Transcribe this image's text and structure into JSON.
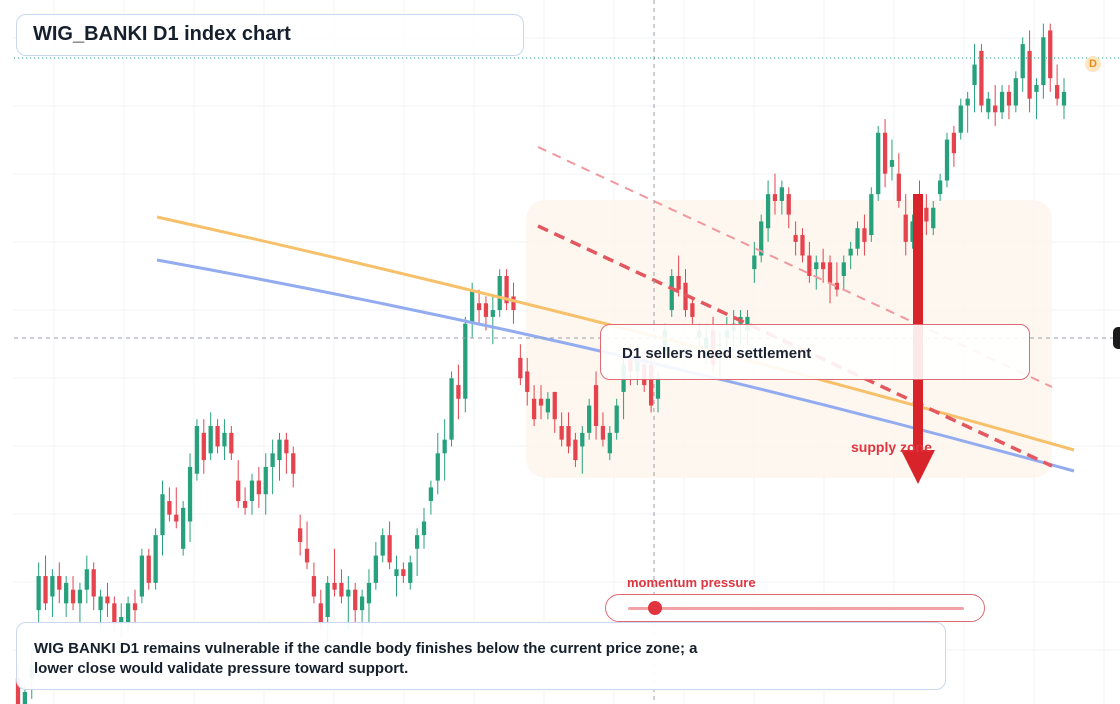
{
  "header": {
    "title": "WIG_BANKI D1 index chart"
  },
  "callout": {
    "text": "D1 sellers need settlement"
  },
  "supply_label": "supply zone",
  "momentum": {
    "label": "momentum pressure",
    "level": 0.08
  },
  "note": {
    "line1": "WIG BANKI D1 remains vulnerable if the candle body finishes below the current price zone; a",
    "line2": "lower close would validate pressure toward support."
  },
  "badges": {
    "interval": "D"
  },
  "colors": {
    "bull": "#26a17c",
    "bear": "#e5434d",
    "ema_fast": "#f7c06a",
    "ema_slow": "#93acf0",
    "channel": "#e3575f",
    "arrow": "#d8232a",
    "zone_fill": "#fdf3ea"
  },
  "chart_data": {
    "type": "candlestick",
    "title": "WIG_BANKI D1 index chart",
    "price_range": [
      0,
      100
    ],
    "current_price": 88,
    "crosshair_price": 52,
    "candles": [
      {
        "o": 2,
        "h": 4,
        "l": -4,
        "c": -2
      },
      {
        "o": -2,
        "h": 1,
        "l": -5,
        "c": 0
      },
      {
        "o": 2,
        "h": 6,
        "l": -1,
        "c": 4
      },
      {
        "o": 12,
        "h": 19,
        "l": 10,
        "c": 17
      },
      {
        "o": 17,
        "h": 20,
        "l": 12,
        "c": 13
      },
      {
        "o": 14,
        "h": 18,
        "l": 11,
        "c": 17
      },
      {
        "o": 17,
        "h": 19,
        "l": 13,
        "c": 15
      },
      {
        "o": 13,
        "h": 17,
        "l": 11,
        "c": 16
      },
      {
        "o": 15,
        "h": 17,
        "l": 12,
        "c": 13
      },
      {
        "o": 13,
        "h": 16,
        "l": 10,
        "c": 15
      },
      {
        "o": 15,
        "h": 20,
        "l": 13,
        "c": 18
      },
      {
        "o": 18,
        "h": 19,
        "l": 12,
        "c": 14
      },
      {
        "o": 12,
        "h": 15,
        "l": 9,
        "c": 14
      },
      {
        "o": 14,
        "h": 16,
        "l": 11,
        "c": 13
      },
      {
        "o": 13,
        "h": 14,
        "l": 9,
        "c": 10
      },
      {
        "o": 10,
        "h": 13,
        "l": 8,
        "c": 11
      },
      {
        "o": 10,
        "h": 14,
        "l": 9,
        "c": 13
      },
      {
        "o": 13,
        "h": 15,
        "l": 10,
        "c": 12
      },
      {
        "o": 14,
        "h": 21,
        "l": 13,
        "c": 20
      },
      {
        "o": 20,
        "h": 21,
        "l": 15,
        "c": 16
      },
      {
        "o": 16,
        "h": 24,
        "l": 15,
        "c": 23
      },
      {
        "o": 23,
        "h": 31,
        "l": 20,
        "c": 29
      },
      {
        "o": 28,
        "h": 30,
        "l": 25,
        "c": 26
      },
      {
        "o": 26,
        "h": 30,
        "l": 24,
        "c": 25
      },
      {
        "o": 21,
        "h": 28,
        "l": 20,
        "c": 27
      },
      {
        "o": 25,
        "h": 35,
        "l": 22,
        "c": 33
      },
      {
        "o": 32,
        "h": 40,
        "l": 31,
        "c": 39
      },
      {
        "o": 38,
        "h": 40,
        "l": 32,
        "c": 34
      },
      {
        "o": 35,
        "h": 41,
        "l": 34,
        "c": 39
      },
      {
        "o": 39,
        "h": 40,
        "l": 35,
        "c": 36
      },
      {
        "o": 36,
        "h": 40,
        "l": 34,
        "c": 38
      },
      {
        "o": 38,
        "h": 39,
        "l": 34,
        "c": 35
      },
      {
        "o": 31,
        "h": 34,
        "l": 27,
        "c": 28
      },
      {
        "o": 28,
        "h": 30,
        "l": 26,
        "c": 27
      },
      {
        "o": 28,
        "h": 32,
        "l": 26,
        "c": 31
      },
      {
        "o": 31,
        "h": 33,
        "l": 27,
        "c": 29
      },
      {
        "o": 29,
        "h": 35,
        "l": 26,
        "c": 33
      },
      {
        "o": 33,
        "h": 37,
        "l": 29,
        "c": 35
      },
      {
        "o": 34,
        "h": 38,
        "l": 31,
        "c": 37
      },
      {
        "o": 37,
        "h": 38,
        "l": 32,
        "c": 35
      },
      {
        "o": 35,
        "h": 36,
        "l": 30,
        "c": 32
      },
      {
        "o": 24,
        "h": 26,
        "l": 20,
        "c": 22
      },
      {
        "o": 21,
        "h": 25,
        "l": 18,
        "c": 19
      },
      {
        "o": 17,
        "h": 19,
        "l": 13,
        "c": 14
      },
      {
        "o": 13,
        "h": 15,
        "l": 9,
        "c": 10
      },
      {
        "o": 11,
        "h": 17,
        "l": 6,
        "c": 16
      },
      {
        "o": 16,
        "h": 21,
        "l": 14,
        "c": 15
      },
      {
        "o": 16,
        "h": 18,
        "l": 13,
        "c": 14
      },
      {
        "o": 14,
        "h": 17,
        "l": 9,
        "c": 15
      },
      {
        "o": 15,
        "h": 16,
        "l": 10,
        "c": 12
      },
      {
        "o": 12,
        "h": 15,
        "l": 8,
        "c": 14
      },
      {
        "o": 13,
        "h": 18,
        "l": 10,
        "c": 16
      },
      {
        "o": 16,
        "h": 22,
        "l": 15,
        "c": 20
      },
      {
        "o": 20,
        "h": 24,
        "l": 19,
        "c": 23
      },
      {
        "o": 23,
        "h": 25,
        "l": 18,
        "c": 19
      },
      {
        "o": 17,
        "h": 20,
        "l": 14,
        "c": 18
      },
      {
        "o": 18,
        "h": 19,
        "l": 16,
        "c": 17
      },
      {
        "o": 16,
        "h": 20,
        "l": 15,
        "c": 19
      },
      {
        "o": 21,
        "h": 24,
        "l": 17,
        "c": 23
      },
      {
        "o": 23,
        "h": 27,
        "l": 21,
        "c": 25
      },
      {
        "o": 28,
        "h": 31,
        "l": 26,
        "c": 30
      },
      {
        "o": 31,
        "h": 38,
        "l": 29,
        "c": 35
      },
      {
        "o": 35,
        "h": 40,
        "l": 31,
        "c": 37
      },
      {
        "o": 37,
        "h": 47,
        "l": 36,
        "c": 46
      },
      {
        "o": 45,
        "h": 48,
        "l": 40,
        "c": 43
      },
      {
        "o": 43,
        "h": 55,
        "l": 41,
        "c": 54
      },
      {
        "o": 54,
        "h": 60,
        "l": 52,
        "c": 59
      },
      {
        "o": 57,
        "h": 59,
        "l": 54,
        "c": 56
      },
      {
        "o": 57,
        "h": 58,
        "l": 53,
        "c": 55
      },
      {
        "o": 55,
        "h": 58,
        "l": 51,
        "c": 56
      },
      {
        "o": 56,
        "h": 62,
        "l": 55,
        "c": 61
      },
      {
        "o": 61,
        "h": 62,
        "l": 56,
        "c": 57
      },
      {
        "o": 58,
        "h": 60,
        "l": 54,
        "c": 56
      },
      {
        "o": 49,
        "h": 51,
        "l": 45,
        "c": 46
      },
      {
        "o": 47,
        "h": 49,
        "l": 42,
        "c": 44
      },
      {
        "o": 43,
        "h": 45,
        "l": 39,
        "c": 40
      },
      {
        "o": 43,
        "h": 45,
        "l": 40,
        "c": 42
      },
      {
        "o": 41,
        "h": 44,
        "l": 40,
        "c": 43
      },
      {
        "o": 44,
        "h": 44,
        "l": 38,
        "c": 40
      },
      {
        "o": 39,
        "h": 41,
        "l": 36,
        "c": 37
      },
      {
        "o": 39,
        "h": 41,
        "l": 35,
        "c": 36
      },
      {
        "o": 37,
        "h": 38,
        "l": 33,
        "c": 34
      },
      {
        "o": 36,
        "h": 39,
        "l": 32,
        "c": 38
      },
      {
        "o": 38,
        "h": 43,
        "l": 37,
        "c": 42
      },
      {
        "o": 45,
        "h": 47,
        "l": 37,
        "c": 39
      },
      {
        "o": 39,
        "h": 41,
        "l": 36,
        "c": 37
      },
      {
        "o": 35,
        "h": 39,
        "l": 34,
        "c": 38
      },
      {
        "o": 38,
        "h": 43,
        "l": 37,
        "c": 42
      },
      {
        "o": 44,
        "h": 50,
        "l": 40,
        "c": 48
      },
      {
        "o": 49,
        "h": 51,
        "l": 45,
        "c": 47
      },
      {
        "o": 47,
        "h": 51,
        "l": 45,
        "c": 49
      },
      {
        "o": 48,
        "h": 50,
        "l": 44,
        "c": 45
      },
      {
        "o": 48,
        "h": 50,
        "l": 41,
        "c": 42
      },
      {
        "o": 43,
        "h": 47,
        "l": 41,
        "c": 46
      },
      {
        "o": 50,
        "h": 54,
        "l": 49,
        "c": 53
      },
      {
        "o": 56,
        "h": 62,
        "l": 55,
        "c": 61
      },
      {
        "o": 61,
        "h": 64,
        "l": 58,
        "c": 59
      },
      {
        "o": 60,
        "h": 62,
        "l": 55,
        "c": 56
      },
      {
        "o": 57,
        "h": 58,
        "l": 54,
        "c": 55
      },
      {
        "o": 52,
        "h": 54,
        "l": 49,
        "c": 53
      },
      {
        "o": 50,
        "h": 54,
        "l": 48,
        "c": 52
      },
      {
        "o": 53,
        "h": 55,
        "l": 47,
        "c": 48
      },
      {
        "o": 51,
        "h": 53,
        "l": 46,
        "c": 51
      },
      {
        "o": 52,
        "h": 55,
        "l": 50,
        "c": 53
      },
      {
        "o": 53,
        "h": 56,
        "l": 50,
        "c": 54
      },
      {
        "o": 54,
        "h": 56,
        "l": 51,
        "c": 55
      },
      {
        "o": 53,
        "h": 56,
        "l": 51,
        "c": 55
      },
      {
        "o": 62,
        "h": 66,
        "l": 60,
        "c": 64
      },
      {
        "o": 64,
        "h": 70,
        "l": 63,
        "c": 69
      },
      {
        "o": 68,
        "h": 75,
        "l": 66,
        "c": 73
      },
      {
        "o": 73,
        "h": 76,
        "l": 70,
        "c": 72
      },
      {
        "o": 72,
        "h": 75,
        "l": 70,
        "c": 74
      },
      {
        "o": 73,
        "h": 74,
        "l": 68,
        "c": 70
      },
      {
        "o": 67,
        "h": 69,
        "l": 64,
        "c": 66
      },
      {
        "o": 67,
        "h": 68,
        "l": 63,
        "c": 64
      },
      {
        "o": 64,
        "h": 66,
        "l": 60,
        "c": 61
      },
      {
        "o": 62,
        "h": 64,
        "l": 59,
        "c": 63
      },
      {
        "o": 63,
        "h": 65,
        "l": 60,
        "c": 62
      },
      {
        "o": 63,
        "h": 64,
        "l": 57,
        "c": 60
      },
      {
        "o": 60,
        "h": 63,
        "l": 58,
        "c": 59
      },
      {
        "o": 61,
        "h": 64,
        "l": 59,
        "c": 63
      },
      {
        "o": 64,
        "h": 66,
        "l": 62,
        "c": 65
      },
      {
        "o": 65,
        "h": 69,
        "l": 64,
        "c": 68
      },
      {
        "o": 68,
        "h": 70,
        "l": 64,
        "c": 66
      },
      {
        "o": 67,
        "h": 74,
        "l": 66,
        "c": 73
      },
      {
        "o": 73,
        "h": 83,
        "l": 72,
        "c": 82
      },
      {
        "o": 82,
        "h": 84,
        "l": 74,
        "c": 76
      },
      {
        "o": 77,
        "h": 81,
        "l": 75,
        "c": 78
      },
      {
        "o": 76,
        "h": 79,
        "l": 71,
        "c": 72
      },
      {
        "o": 70,
        "h": 73,
        "l": 64,
        "c": 66
      },
      {
        "o": 66,
        "h": 70,
        "l": 65,
        "c": 69
      },
      {
        "o": 72,
        "h": 75,
        "l": 69,
        "c": 71
      },
      {
        "o": 71,
        "h": 73,
        "l": 67,
        "c": 69
      },
      {
        "o": 68,
        "h": 72,
        "l": 67,
        "c": 71
      },
      {
        "o": 73,
        "h": 76,
        "l": 72,
        "c": 75
      },
      {
        "o": 75,
        "h": 82,
        "l": 74,
        "c": 81
      },
      {
        "o": 82,
        "h": 83,
        "l": 77,
        "c": 79
      },
      {
        "o": 82,
        "h": 87,
        "l": 81,
        "c": 86
      },
      {
        "o": 86,
        "h": 88,
        "l": 82,
        "c": 87
      },
      {
        "o": 89,
        "h": 95,
        "l": 85,
        "c": 92
      },
      {
        "o": 94,
        "h": 95,
        "l": 85,
        "c": 86
      },
      {
        "o": 85,
        "h": 88,
        "l": 84,
        "c": 87
      },
      {
        "o": 86,
        "h": 89,
        "l": 83,
        "c": 85
      },
      {
        "o": 85,
        "h": 89,
        "l": 84,
        "c": 88
      },
      {
        "o": 88,
        "h": 89,
        "l": 84,
        "c": 86
      },
      {
        "o": 86,
        "h": 91,
        "l": 85,
        "c": 90
      },
      {
        "o": 90,
        "h": 96,
        "l": 88,
        "c": 95
      },
      {
        "o": 94,
        "h": 97,
        "l": 85,
        "c": 87
      },
      {
        "o": 88,
        "h": 90,
        "l": 84,
        "c": 89
      },
      {
        "o": 89,
        "h": 98,
        "l": 87,
        "c": 96
      },
      {
        "o": 97,
        "h": 98,
        "l": 88,
        "c": 90
      },
      {
        "o": 89,
        "h": 92,
        "l": 86,
        "c": 87
      },
      {
        "o": 86,
        "h": 90,
        "l": 84,
        "c": 88
      }
    ]
  }
}
